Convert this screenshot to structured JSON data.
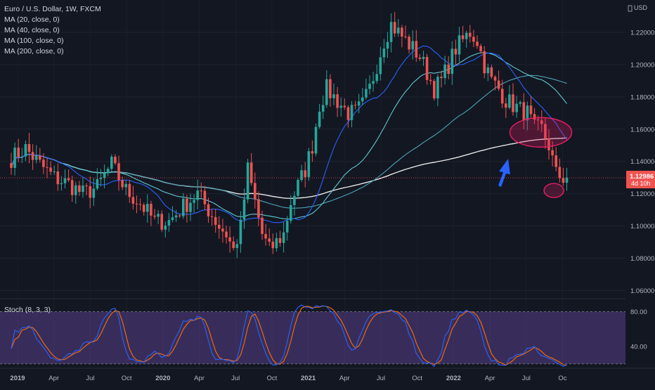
{
  "chart_data": [
    {
      "type": "candlestick",
      "title": "Euro / U.S. Dollar, 1W, FXCM",
      "indicators": [
        "MA (20, close, 0)",
        "MA (40, close, 0)",
        "MA (100, close, 0)",
        "MA (200, close, 0)"
      ],
      "currency_label": "USD",
      "ylim": [
        1.055,
        1.24
      ],
      "y_ticks": [
        "1.22000",
        "1.20000",
        "1.18000",
        "1.16000",
        "1.14000",
        "1.12000",
        "1.10000",
        "1.08000",
        "1.06000"
      ],
      "y_tick_values": [
        1.22,
        1.2,
        1.18,
        1.16,
        1.14,
        1.12,
        1.1,
        1.08,
        1.06
      ],
      "last_price": "1.12986",
      "last_price_value": 1.12986,
      "countdown": "4d 10h",
      "x_tick_labels": [
        "2019",
        "Apr",
        "Jul",
        "Oct",
        "2020",
        "Apr",
        "Jul",
        "Oct",
        "2021",
        "Apr",
        "Jul",
        "Oct",
        "2022",
        "Apr",
        "Jul",
        "Oc"
      ],
      "anchors": [
        [
          0,
          1.142
        ],
        [
          4,
          1.148
        ],
        [
          8,
          1.138
        ],
        [
          12,
          1.13
        ],
        [
          16,
          1.126
        ],
        [
          20,
          1.12
        ],
        [
          24,
          1.124
        ],
        [
          28,
          1.138
        ],
        [
          32,
          1.122
        ],
        [
          36,
          1.114
        ],
        [
          40,
          1.103
        ],
        [
          44,
          1.103
        ],
        [
          48,
          1.112
        ],
        [
          52,
          1.12
        ],
        [
          55,
          1.11
        ],
        [
          58,
          1.1
        ],
        [
          60,
          1.095
        ],
        [
          62,
          1.085
        ],
        [
          64,
          1.099
        ],
        [
          66,
          1.135
        ],
        [
          68,
          1.115
        ],
        [
          70,
          1.095
        ],
        [
          72,
          1.085
        ],
        [
          74,
          1.09
        ],
        [
          76,
          1.095
        ],
        [
          78,
          1.115
        ],
        [
          80,
          1.125
        ],
        [
          82,
          1.135
        ],
        [
          84,
          1.15
        ],
        [
          86,
          1.175
        ],
        [
          88,
          1.185
        ],
        [
          90,
          1.18
        ],
        [
          92,
          1.175
        ],
        [
          94,
          1.17
        ],
        [
          96,
          1.17
        ],
        [
          98,
          1.175
        ],
        [
          100,
          1.185
        ],
        [
          102,
          1.2
        ],
        [
          104,
          1.215
        ],
        [
          106,
          1.225
        ],
        [
          108,
          1.22
        ],
        [
          110,
          1.215
        ],
        [
          112,
          1.21
        ],
        [
          114,
          1.205
        ],
        [
          116,
          1.195
        ],
        [
          118,
          1.185
        ],
        [
          120,
          1.19
        ],
        [
          122,
          1.2
        ],
        [
          124,
          1.21
        ],
        [
          126,
          1.215
        ],
        [
          128,
          1.22
        ],
        [
          130,
          1.215
        ],
        [
          132,
          1.2
        ],
        [
          134,
          1.19
        ],
        [
          136,
          1.185
        ],
        [
          138,
          1.178
        ],
        [
          140,
          1.175
        ],
        [
          142,
          1.172
        ],
        [
          144,
          1.17
        ],
        [
          146,
          1.16
        ],
        [
          148,
          1.16
        ],
        [
          150,
          1.15
        ],
        [
          152,
          1.132
        ],
        [
          154,
          1.13
        ],
        [
          155,
          1.13
        ]
      ],
      "ma_colors": {
        "ma20": "#2962ff",
        "ma40": "#5ec8d0",
        "ma100": "#4aa3b6",
        "ma200": "#e6e6e6"
      },
      "up_color": "#26a69a",
      "down_color": "#ef5350",
      "annotations": [
        {
          "type": "ellipse",
          "label": "zone around MA200",
          "x_week": 145,
          "y": 1.158,
          "color": "#e91e63"
        },
        {
          "type": "ellipse",
          "label": "recent low zone",
          "x_week": 151,
          "y": 1.122,
          "color": "#e91e63"
        },
        {
          "type": "arrow",
          "direction": "up",
          "color": "#2962ff"
        }
      ]
    },
    {
      "type": "line",
      "title": "Stoch (8, 3, 3)",
      "ylim": [
        15,
        95
      ],
      "y_ticks": [
        "80.00",
        "40.00"
      ],
      "y_tick_values": [
        80,
        40
      ],
      "band": [
        20,
        80
      ],
      "series": [
        {
          "name": "%K",
          "color": "#2962ff"
        },
        {
          "name": "%D",
          "color": "#ff6d00"
        }
      ]
    }
  ]
}
